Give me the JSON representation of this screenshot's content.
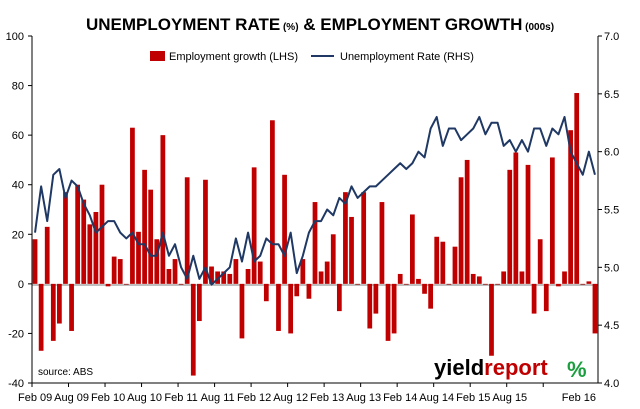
{
  "chart_data": {
    "type": "bar+line",
    "title": "UNEMPLOYMENT RATE",
    "title_unit_1": "(%)",
    "title_mid": "& EMPLOYMENT GROWTH",
    "title_unit_2": "(000s)",
    "source": "source: ABS",
    "brand": {
      "part1": "yield",
      "part2": "report",
      "symbol": "%",
      "color1": "#000000",
      "color2": "#c00000",
      "symbol_color": "#1b9e3e"
    },
    "x_tick_labels": [
      "Feb 09",
      "Aug 09",
      "Feb 10",
      "Aug 10",
      "Feb 11",
      "Aug 11",
      "Feb 12",
      "Aug 12",
      "Feb 13",
      "Aug 13",
      "Feb 14",
      "Aug 14",
      "Feb 15",
      "Aug 15",
      "Feb 16"
    ],
    "x_tick_months": [
      0,
      6,
      12,
      18,
      24,
      30,
      36,
      42,
      48,
      54,
      60,
      66,
      72,
      78,
      84
    ],
    "y_left": {
      "min": -40,
      "max": 100,
      "ticks": [
        -40,
        -20,
        0,
        20,
        40,
        60,
        80,
        100
      ]
    },
    "y_right": {
      "min": 4.0,
      "max": 7.0,
      "ticks": [
        "4.0",
        "4.5",
        "5.0",
        "5.5",
        "6.0",
        "6.5",
        "7.0"
      ]
    },
    "grid": false,
    "legend_position": "top",
    "series": [
      {
        "name": "Employment growth (LHS)",
        "type": "bar",
        "axis": "left",
        "color": "#c00000",
        "values": [
          18,
          -27,
          23,
          -23,
          -16,
          37,
          -19,
          40,
          34,
          24,
          29,
          40,
          -1,
          11,
          10,
          0,
          63,
          21,
          46,
          38,
          18,
          60,
          6,
          10,
          0,
          43,
          -37,
          -15,
          42,
          7,
          5,
          5,
          4,
          10,
          -22,
          6,
          47,
          9,
          -7,
          66,
          -19,
          44,
          -20,
          -5,
          10,
          -6,
          33,
          5,
          9,
          20,
          -11,
          37,
          27,
          0,
          37,
          -18,
          -12,
          33,
          -23,
          -20,
          4,
          0,
          28,
          2,
          -4,
          -10,
          19,
          17,
          0,
          15,
          43,
          50,
          4,
          3,
          0,
          -29,
          0,
          5,
          46,
          53,
          5,
          48,
          -12,
          18,
          -11,
          51,
          -1,
          5,
          62,
          77,
          0,
          1,
          -20
        ]
      },
      {
        "name": "Unemployment Rate (RHS)",
        "type": "line",
        "axis": "right",
        "color": "#1f3864",
        "values": [
          5.3,
          5.7,
          5.4,
          5.8,
          5.85,
          5.6,
          5.75,
          5.7,
          5.55,
          5.45,
          5.3,
          5.35,
          5.4,
          5.4,
          5.3,
          5.25,
          5.3,
          5.2,
          5.2,
          5.1,
          5.1,
          5.3,
          5.1,
          5.2,
          5.0,
          4.9,
          5.1,
          4.9,
          5.0,
          4.85,
          4.9,
          4.95,
          5.0,
          5.25,
          5.05,
          5.3,
          5.05,
          5.1,
          5.25,
          5.2,
          5.2,
          5.1,
          5.3,
          4.95,
          5.1,
          5.3,
          5.4,
          5.4,
          5.5,
          5.45,
          5.6,
          5.55,
          5.7,
          5.6,
          5.65,
          5.7,
          5.7,
          5.75,
          5.8,
          5.85,
          5.9,
          5.85,
          5.9,
          6.0,
          5.95,
          6.2,
          6.3,
          6.05,
          6.2,
          6.2,
          6.1,
          6.15,
          6.2,
          6.3,
          6.15,
          6.25,
          6.25,
          6.05,
          6.1,
          6.0,
          6.1,
          6.0,
          6.2,
          6.2,
          6.05,
          6.2,
          6.15,
          6.3,
          6.0,
          5.9,
          5.8,
          6.0,
          5.8
        ]
      }
    ]
  }
}
